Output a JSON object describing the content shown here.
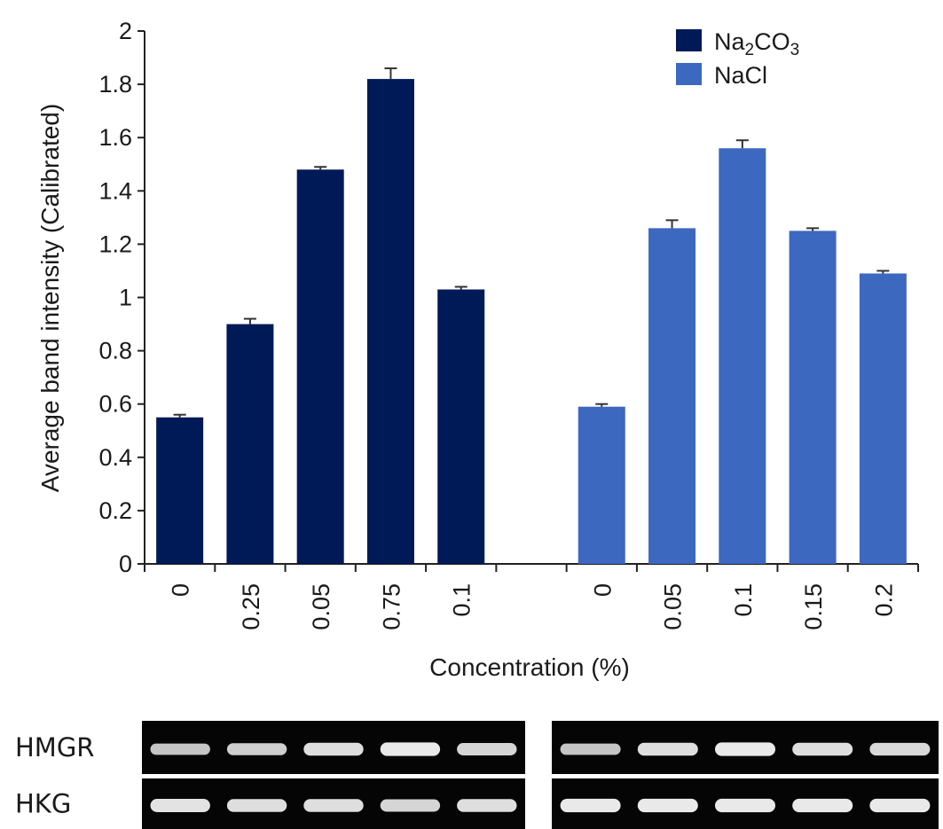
{
  "chart_data": {
    "type": "bar",
    "ylabel": "Average band intensity (Calibrated)",
    "xlabel": "Concentration (%)",
    "ylim": [
      0,
      2
    ],
    "yticks": [
      "0",
      "0.2",
      "0.4",
      "0.6",
      "0.8",
      "1",
      "1.2",
      "1.4",
      "1.6",
      "1.8",
      "2"
    ],
    "legend_position": "top-right",
    "series": [
      {
        "name": "Na2CO3",
        "legend_main": "Na",
        "legend_sub1": "2",
        "legend_mid": "CO",
        "legend_sub2": "3",
        "color": "#001a57",
        "categories": [
          "0",
          "0.25",
          "0.05",
          "0.75",
          "0.1"
        ],
        "values": [
          0.55,
          0.9,
          1.48,
          1.82,
          1.03
        ],
        "errors": [
          0.01,
          0.02,
          0.01,
          0.04,
          0.01
        ]
      },
      {
        "name": "NaCl",
        "color": "#3d68c0",
        "categories": [
          "0",
          "0.05",
          "0.1",
          "0.15",
          "0.2"
        ],
        "values": [
          0.59,
          1.26,
          1.56,
          1.25,
          1.09
        ],
        "errors": [
          0.01,
          0.03,
          0.03,
          0.01,
          0.01
        ]
      }
    ]
  },
  "gel": {
    "rows": [
      {
        "label": "HMGR",
        "left_bands": [
          0.55,
          0.65,
          0.8,
          0.9,
          0.7
        ],
        "right_bands": [
          0.55,
          0.8,
          0.9,
          0.8,
          0.75
        ]
      },
      {
        "label": "HKG",
        "left_bands": [
          0.85,
          0.8,
          0.8,
          0.7,
          0.8
        ],
        "right_bands": [
          0.9,
          0.9,
          0.9,
          0.9,
          0.9
        ]
      }
    ]
  }
}
